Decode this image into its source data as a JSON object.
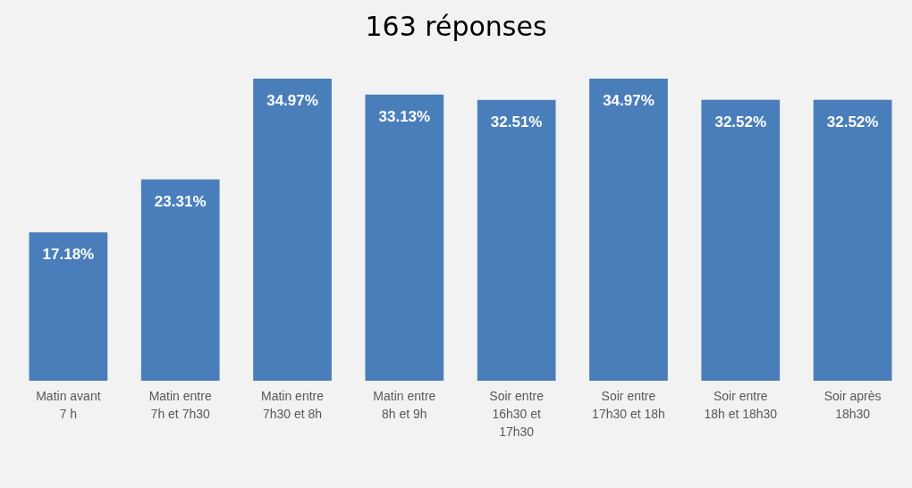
{
  "chart_data": {
    "type": "bar",
    "title": "163 réponses",
    "relative": false,
    "categories": [
      "Matin avant 7 h",
      "Matin entre 7h et 7h30",
      "Matin entre 7h30 et 8h",
      "Matin entre 8h et 9h",
      "Soir entre 16h30 et 17h30",
      "Soir entre 17h30 et 18h",
      "Soir entre 18h et 18h30",
      "Soir après 18h30"
    ],
    "values": [
      17.18,
      23.31,
      34.97,
      33.13,
      32.51,
      34.97,
      32.52,
      32.52
    ],
    "value_labels": [
      "17.18%",
      "23.31%",
      "34.97%",
      "33.13%",
      "32.51%",
      "34.97%",
      "32.52%",
      "32.52%"
    ],
    "color": "#4a7ebb"
  }
}
